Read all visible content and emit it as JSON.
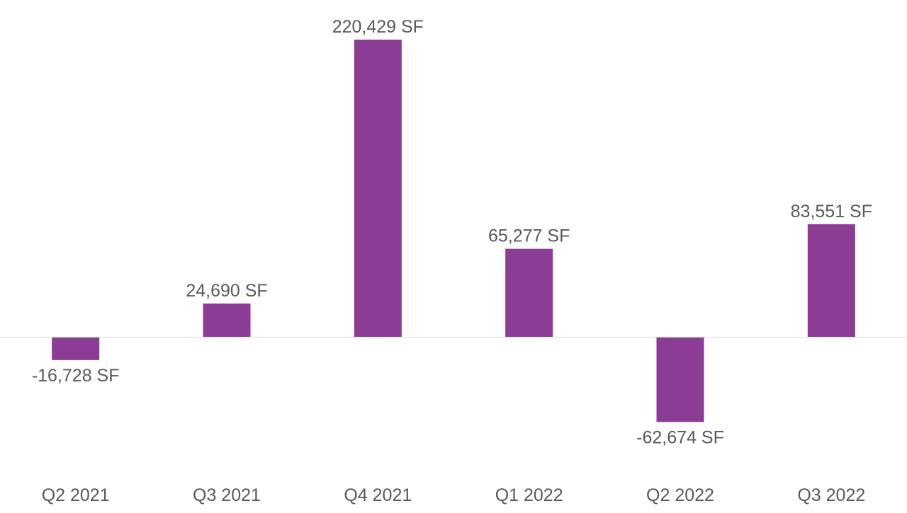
{
  "chart_data": {
    "type": "bar",
    "title": "",
    "xlabel": "",
    "ylabel": "",
    "categories": [
      "Q2 2021",
      "Q3 2021",
      "Q4 2021",
      "Q1 2022",
      "Q2 2022",
      "Q3 2022"
    ],
    "values": [
      -16728,
      24690,
      220429,
      65277,
      -62674,
      83551
    ],
    "data_labels": [
      "-16,728 SF",
      "24,690 SF",
      "220,429 SF",
      "65,277 SF",
      "-62,674 SF",
      "83,551 SF"
    ],
    "ylim": [
      -80000,
      230000
    ],
    "grid": false,
    "legend": "none",
    "colors": {
      "bar": "#8B3D96",
      "zero_line": "#D9D9D9",
      "text": "#595959"
    }
  }
}
